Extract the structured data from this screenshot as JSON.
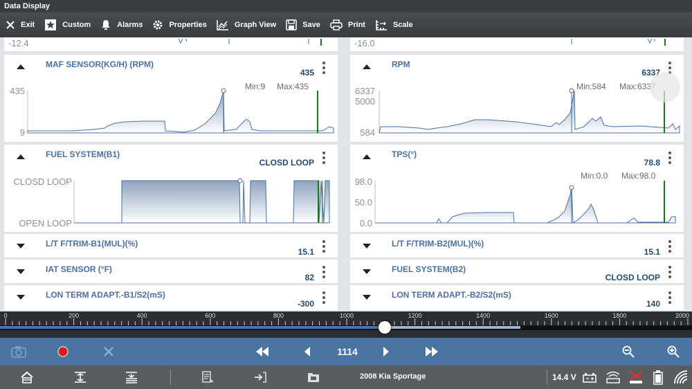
{
  "window": {
    "title": "Data  Display"
  },
  "toolbar": {
    "exit": "Exit",
    "custom": "Custom",
    "alarms": "Alarms",
    "properties": "Properties",
    "graph_view": "Graph View",
    "save": "Save",
    "print": "Print",
    "scale": "Scale"
  },
  "partial_top": {
    "left_value": "-12.4",
    "right_value": "-16.0"
  },
  "panels": {
    "maf": {
      "title": "MAF SENSOR(KG/H) (RPM)",
      "value": "435",
      "min": "Min:9",
      "max": "Max:435",
      "scale_top": "435",
      "scale_bottom": "9"
    },
    "rpm": {
      "title": "RPM",
      "value": "6337",
      "min": "Min:584",
      "max": "Max:6337",
      "scale_top": "6337",
      "scale_mid": "5000",
      "scale_bottom": "584"
    },
    "fuel1": {
      "title": "FUEL SYSTEM(B1)",
      "value": "CLOSD LOOP",
      "scale_top": "CLOSD LOOP",
      "scale_bottom": "OPEN LOOP"
    },
    "tps": {
      "title": "TPS(°)",
      "value": "78.8",
      "min": "Min:0.0",
      "max": "Max:98.0",
      "scale_top": "98.0",
      "scale_mid": "50.0",
      "scale_bottom": "0.0"
    },
    "ltft1": {
      "title": "L/T F/TRIM-B1(MUL)(%)",
      "value": "15.1"
    },
    "ltft2": {
      "title": "L/T F/TRIM-B2(MUL)(%)",
      "value": "15.1"
    },
    "iat": {
      "title": "IAT SENSOR (°F)",
      "value": "82"
    },
    "fuel2": {
      "title": "FUEL SYSTEM(B2)",
      "value": "CLOSD LOOP"
    },
    "lon1": {
      "title": "LON TERM ADAPT.-B1/S2(mS)",
      "value": "-300"
    },
    "lon2": {
      "title": "LON TERM ADAPT.-B2/S2(mS)",
      "value": "140"
    }
  },
  "timeline": {
    "labels": [
      "0",
      "200",
      "400",
      "600",
      "800",
      "1000",
      "1200",
      "1400",
      "1600",
      "1800",
      "2000"
    ],
    "position": 1114,
    "max": 2000
  },
  "playback": {
    "position_label": "1114"
  },
  "status": {
    "vehicle": "2008 Kia Sportage",
    "voltage": "14.4 V"
  },
  "colors": {
    "accent": "#4c74a3",
    "title_text": "#4a6fa5",
    "cursor_line": "#1a7a1a"
  }
}
